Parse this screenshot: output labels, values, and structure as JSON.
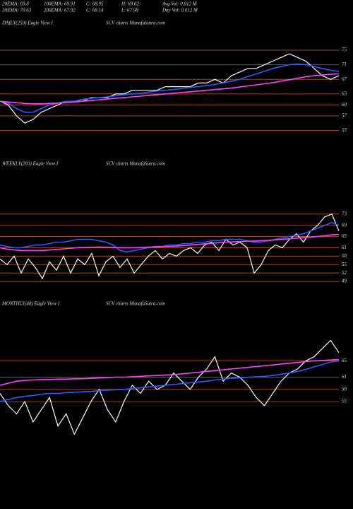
{
  "header": [
    [
      "20EMA: 69.8",
      "100EMA: 69.91",
      "C: 68.95",
      "H: 69.02",
      "Avg Vol: 0.012  M"
    ],
    [
      "30EMA: 70.63",
      "200EMA: 67.92",
      "C: 68.14",
      "L: 67.98",
      "Day Vol: 0.012  M"
    ]
  ],
  "chart_data": [
    {
      "type": "line",
      "title": "DAILY(250) Eagle  View  I",
      "subtitle": "SCV charts MunafaSutra.com",
      "ylim": [
        50,
        81
      ],
      "yticks": [
        75,
        71,
        67,
        63,
        60,
        57,
        53
      ],
      "series": [
        {
          "name": "Price",
          "color": "#ffffff",
          "values": [
            61,
            60,
            57,
            55,
            56,
            58,
            59,
            60,
            61,
            61,
            61,
            62,
            62,
            62,
            63,
            63,
            64,
            64,
            64,
            64,
            65,
            65,
            65,
            65,
            66,
            66,
            67,
            66,
            68,
            69,
            70,
            70,
            71,
            72,
            73,
            74,
            73,
            72,
            70,
            68,
            67,
            68
          ]
        },
        {
          "name": "EMA20",
          "color": "#2a5cff",
          "values": [
            61,
            60.5,
            59,
            58,
            58,
            59,
            60,
            60.5,
            61,
            61,
            61.5,
            61.8,
            62,
            62.2,
            62.5,
            62.8,
            63,
            63.2,
            63.5,
            63.8,
            64,
            64.2,
            64.5,
            64.8,
            65,
            65.3,
            65.6,
            66,
            66.5,
            67,
            67.8,
            68.5,
            69.2,
            70,
            70.5,
            71,
            71.2,
            71,
            70.5,
            70,
            69.5,
            69.2
          ]
        },
        {
          "name": "EMA200",
          "color": "#ff40ff",
          "values": [
            61,
            60.8,
            60.6,
            60.4,
            60.3,
            60.3,
            60.4,
            60.5,
            60.6,
            60.8,
            61,
            61.2,
            61.4,
            61.6,
            61.8,
            62,
            62.2,
            62.4,
            62.6,
            62.8,
            63,
            63.2,
            63.4,
            63.6,
            63.8,
            64,
            64.2,
            64.4,
            64.6,
            64.9,
            65.2,
            65.5,
            65.8,
            66.1,
            66.5,
            66.9,
            67.3,
            67.7,
            68,
            68.2,
            68.4,
            68.5
          ]
        }
      ]
    },
    {
      "type": "line",
      "title": "WEEKLY(283) Eagle  View  I",
      "subtitle": "SCV charts MunafaSutra.com",
      "ylim": [
        46,
        80
      ],
      "yticks": [
        73,
        69,
        65,
        61,
        58,
        55,
        52,
        49
      ],
      "series": [
        {
          "name": "Price",
          "color": "#ffffff",
          "values": [
            57,
            55,
            58,
            52,
            57,
            54,
            50,
            56,
            53,
            58,
            52,
            57,
            55,
            59,
            51,
            56,
            58,
            54,
            57,
            52,
            55,
            58,
            60,
            57,
            59,
            58,
            60,
            61,
            59,
            62,
            63,
            60,
            64,
            62,
            63,
            61,
            52,
            55,
            60,
            62,
            61,
            64,
            66,
            63,
            67,
            69,
            72,
            73,
            67
          ]
        },
        {
          "name": "EMA20",
          "color": "#2a5cff",
          "values": [
            62,
            61.5,
            61,
            61,
            61.5,
            62,
            62,
            62.5,
            63,
            63,
            63.5,
            64,
            64,
            64,
            63.5,
            63,
            62,
            60,
            59.5,
            60,
            60.5,
            61,
            61.5,
            61.5,
            62,
            62,
            62.5,
            62.5,
            63,
            63,
            63.5,
            63.5,
            64,
            64,
            64,
            63.5,
            63,
            63,
            63.5,
            64,
            64.5,
            65,
            65.5,
            66,
            67,
            68,
            69,
            70,
            69
          ]
        },
        {
          "name": "EMA200",
          "color": "#ff40ff",
          "values": [
            61,
            60.5,
            60.2,
            60,
            60,
            60,
            60,
            60.2,
            60.4,
            60.6,
            60.8,
            61,
            61.1,
            61.2,
            61.2,
            61.2,
            61.1,
            61,
            61,
            61,
            61.1,
            61.2,
            61.3,
            61.4,
            61.5,
            61.6,
            61.8,
            62,
            62.2,
            62.4,
            62.6,
            62.8,
            63,
            63.1,
            63.2,
            63.3,
            63.4,
            63.5,
            63.6,
            63.8,
            64,
            64.2,
            64.4,
            64.6,
            64.8,
            65,
            65.3,
            65.6,
            65.8
          ]
        }
      ]
    },
    {
      "type": "line",
      "title": "MONTHLY(48) Eagle  View  I",
      "subtitle": "SCV charts MunafaSutra.com",
      "ylim": [
        46,
        72
      ],
      "yticks": [
        65,
        61,
        58,
        55
      ],
      "series": [
        {
          "name": "Price",
          "color": "#ffffff",
          "values": [
            57,
            54,
            52,
            55,
            50,
            53,
            56,
            49,
            52,
            47,
            51,
            55,
            58,
            53,
            50,
            55,
            59,
            57,
            60,
            58,
            59,
            62,
            60,
            58,
            61,
            63,
            66,
            60,
            62,
            61,
            59,
            56,
            54,
            57,
            60,
            62,
            63,
            65,
            66,
            68,
            70,
            67
          ]
        },
        {
          "name": "EMA20",
          "color": "#2a5cff",
          "values": [
            55,
            55.5,
            56,
            56.3,
            56.5,
            56.8,
            57,
            57,
            57.2,
            57.3,
            57.4,
            57.5,
            57.7,
            57.8,
            57.9,
            58,
            58.2,
            58.4,
            58.6,
            58.8,
            59,
            59.2,
            59.4,
            59.6,
            59.8,
            60,
            60.3,
            60.5,
            60.7,
            60.8,
            61,
            61.1,
            61.2,
            61.4,
            61.7,
            62,
            62.4,
            62.9,
            63.5,
            64.1,
            64.7,
            65
          ]
        },
        {
          "name": "EMA200",
          "color": "#ff40ff",
          "values": [
            59,
            59.5,
            60,
            60.2,
            60.3,
            60.4,
            60.4,
            60.5,
            60.5,
            60.6,
            60.6,
            60.7,
            60.8,
            60.9,
            61,
            61,
            61.1,
            61.2,
            61.3,
            61.4,
            61.5,
            61.6,
            61.8,
            62,
            62.2,
            62.4,
            62.6,
            62.8,
            63,
            63.2,
            63.4,
            63.6,
            63.8,
            64,
            64.2,
            64.4,
            64.6,
            64.8,
            65,
            65.1,
            65.2,
            65.3
          ]
        }
      ]
    }
  ]
}
